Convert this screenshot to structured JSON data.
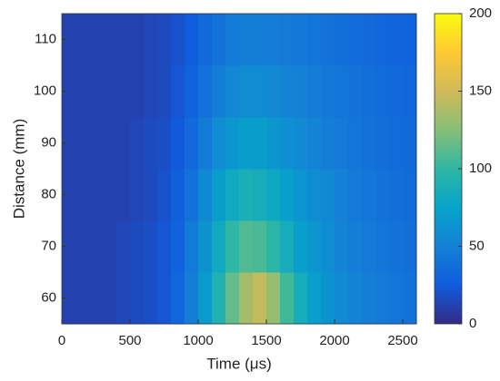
{
  "chart_data": {
    "type": "heatmap",
    "xlabel": "Time (μs)",
    "ylabel": "Distance (mm)",
    "xlim": [
      0,
      2600
    ],
    "xticks": [
      0,
      500,
      1000,
      1500,
      2000,
      2500
    ],
    "ylim": [
      55,
      115
    ],
    "yticks": [
      60,
      70,
      80,
      90,
      100,
      110
    ],
    "xbins": [
      0,
      100,
      200,
      300,
      400,
      500,
      600,
      700,
      800,
      900,
      1000,
      1100,
      1200,
      1300,
      1400,
      1500,
      1600,
      1700,
      1800,
      1900,
      2000,
      2100,
      2200,
      2300,
      2400,
      2500,
      2600
    ],
    "ybins": [
      55,
      65,
      75,
      85,
      95,
      105,
      115
    ],
    "z": [
      [
        12,
        12,
        12,
        12,
        14,
        16,
        18,
        22,
        32,
        48,
        68,
        92,
        115,
        135,
        145,
        130,
        105,
        85,
        72,
        62,
        56,
        52,
        48,
        45,
        42,
        40
      ],
      [
        12,
        12,
        12,
        12,
        14,
        16,
        18,
        22,
        30,
        45,
        62,
        82,
        100,
        110,
        108,
        98,
        85,
        72,
        64,
        58,
        52,
        48,
        45,
        42,
        40,
        38
      ],
      [
        12,
        12,
        12,
        12,
        12,
        14,
        16,
        20,
        28,
        40,
        55,
        70,
        82,
        88,
        86,
        80,
        72,
        64,
        58,
        54,
        50,
        46,
        43,
        40,
        38,
        36
      ],
      [
        12,
        12,
        12,
        12,
        12,
        14,
        16,
        18,
        24,
        34,
        46,
        58,
        66,
        70,
        70,
        66,
        60,
        56,
        52,
        48,
        45,
        42,
        40,
        38,
        36,
        34
      ],
      [
        12,
        12,
        12,
        12,
        12,
        12,
        14,
        16,
        22,
        30,
        40,
        48,
        54,
        58,
        58,
        56,
        52,
        50,
        47,
        44,
        42,
        40,
        38,
        36,
        34,
        32
      ],
      [
        12,
        12,
        12,
        12,
        12,
        12,
        14,
        16,
        20,
        26,
        34,
        40,
        45,
        48,
        48,
        47,
        45,
        44,
        42,
        40,
        38,
        36,
        34,
        32,
        31,
        30
      ]
    ],
    "clim": [
      0,
      200
    ],
    "cticks": [
      0,
      50,
      100,
      150,
      200
    ],
    "colormap": [
      "#352a87",
      "#0f5cdd",
      "#1481d6",
      "#06a4ca",
      "#2eb7a4",
      "#87bf77",
      "#d1bb59",
      "#fec832",
      "#f9fb0e"
    ]
  }
}
